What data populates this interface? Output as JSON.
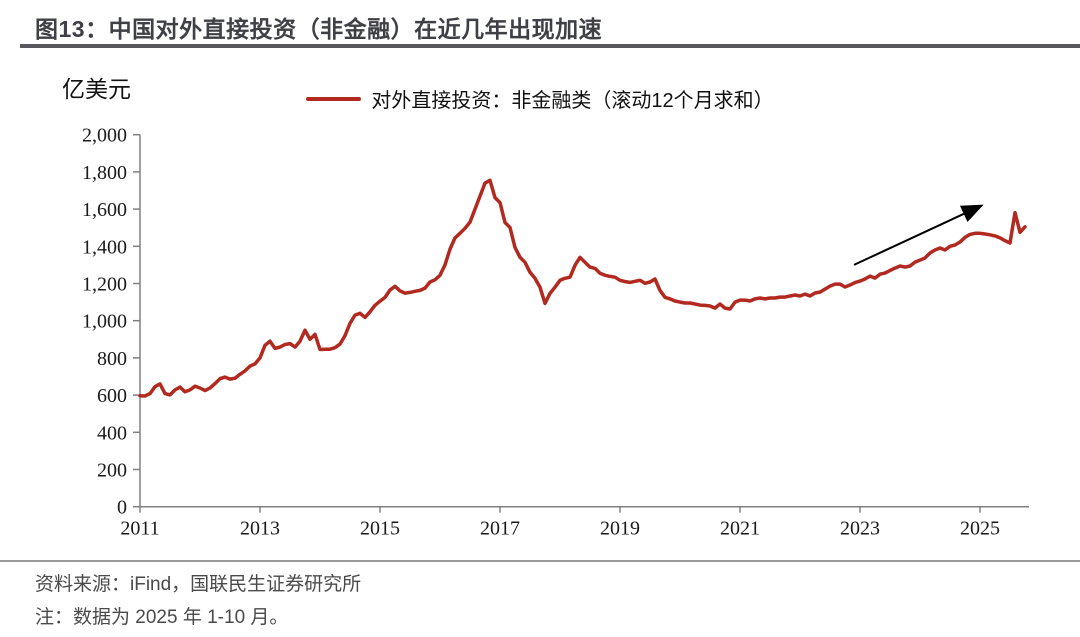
{
  "figure": {
    "title": "图13：中国对外直接投资（非金融）在近几年出现加速",
    "unit_label": "亿美元",
    "source_note": "资料来源：iFind，国联民生证券研究所",
    "data_note": "注：数据为 2025 年 1-10 月。"
  },
  "colors": {
    "line": "#b2291f",
    "title_text": "#3f4045",
    "title_rule": "#58585e",
    "axis": "#808080",
    "tick_text": "#1a1a1a",
    "note_text": "#4a4a4a",
    "footer_rule": "#9b9b9b",
    "arrow": "#000000"
  },
  "chart_data": {
    "type": "line",
    "title": "图13：中国对外直接投资（非金融）在近几年出现加速",
    "ylabel": "亿美元",
    "ylim": [
      0,
      2000
    ],
    "xlim": [
      2011,
      2025.83
    ],
    "grid": false,
    "legend_position": "top-center",
    "legend": [
      {
        "label": "对外直接投资：非金融类（滚动12个月求和）",
        "color": "#b2291f"
      }
    ],
    "y_ticks": [
      {
        "v": 0,
        "label": "0"
      },
      {
        "v": 200,
        "label": "200"
      },
      {
        "v": 400,
        "label": "400"
      },
      {
        "v": 600,
        "label": "600"
      },
      {
        "v": 800,
        "label": "800"
      },
      {
        "v": 1000,
        "label": "1,000"
      },
      {
        "v": 1200,
        "label": "1,200"
      },
      {
        "v": 1400,
        "label": "1,400"
      },
      {
        "v": 1600,
        "label": "1,600"
      },
      {
        "v": 1800,
        "label": "1,800"
      },
      {
        "v": 2000,
        "label": "2,000"
      }
    ],
    "x_ticks": [
      {
        "v": 2011,
        "label": "2011"
      },
      {
        "v": 2013,
        "label": "2013"
      },
      {
        "v": 2015,
        "label": "2015"
      },
      {
        "v": 2017,
        "label": "2017"
      },
      {
        "v": 2019,
        "label": "2019"
      },
      {
        "v": 2021,
        "label": "2021"
      },
      {
        "v": 2023,
        "label": "2023"
      },
      {
        "v": 2025,
        "label": "2025"
      }
    ],
    "series": [
      {
        "name": "对外直接投资：非金融类（滚动12个月求和）",
        "unit": "亿美元",
        "frequency": "monthly",
        "start": "2011-01",
        "end": "2025-10",
        "values": [
          597,
          595,
          608,
          645,
          660,
          608,
          601,
          628,
          643,
          618,
          628,
          648,
          638,
          624,
          638,
          662,
          688,
          697,
          686,
          691,
          712,
          730,
          756,
          768,
          800,
          868,
          890,
          851,
          858,
          872,
          877,
          858,
          890,
          949,
          900,
          927,
          845,
          846,
          847,
          855,
          874,
          920,
          986,
          1030,
          1040,
          1018,
          1048,
          1083,
          1105,
          1125,
          1165,
          1185,
          1160,
          1148,
          1152,
          1158,
          1163,
          1175,
          1208,
          1220,
          1244,
          1300,
          1385,
          1445,
          1470,
          1497,
          1530,
          1600,
          1670,
          1740,
          1755,
          1662,
          1635,
          1528,
          1501,
          1394,
          1341,
          1314,
          1260,
          1228,
          1180,
          1093,
          1147,
          1180,
          1217,
          1228,
          1234,
          1298,
          1341,
          1314,
          1288,
          1281,
          1255,
          1244,
          1238,
          1234,
          1217,
          1210,
          1206,
          1212,
          1217,
          1201,
          1208,
          1224,
          1163,
          1126,
          1117,
          1106,
          1100,
          1095,
          1095,
          1090,
          1084,
          1082,
          1079,
          1068,
          1090,
          1068,
          1063,
          1100,
          1111,
          1111,
          1106,
          1117,
          1122,
          1117,
          1122,
          1122,
          1127,
          1127,
          1133,
          1138,
          1133,
          1143,
          1133,
          1149,
          1154,
          1170,
          1186,
          1197,
          1197,
          1181,
          1192,
          1205,
          1213,
          1224,
          1240,
          1229,
          1250,
          1256,
          1270,
          1283,
          1294,
          1288,
          1294,
          1315,
          1326,
          1337,
          1364,
          1380,
          1391,
          1380,
          1400,
          1407,
          1423,
          1448,
          1464,
          1470,
          1470,
          1466,
          1462,
          1456,
          1445,
          1430,
          1418,
          1581,
          1475,
          1505
        ]
      }
    ],
    "annotation_arrow": {
      "from_x": 2022.9,
      "from_y": 1300,
      "to_x": 2025.0,
      "to_y": 1615
    }
  }
}
